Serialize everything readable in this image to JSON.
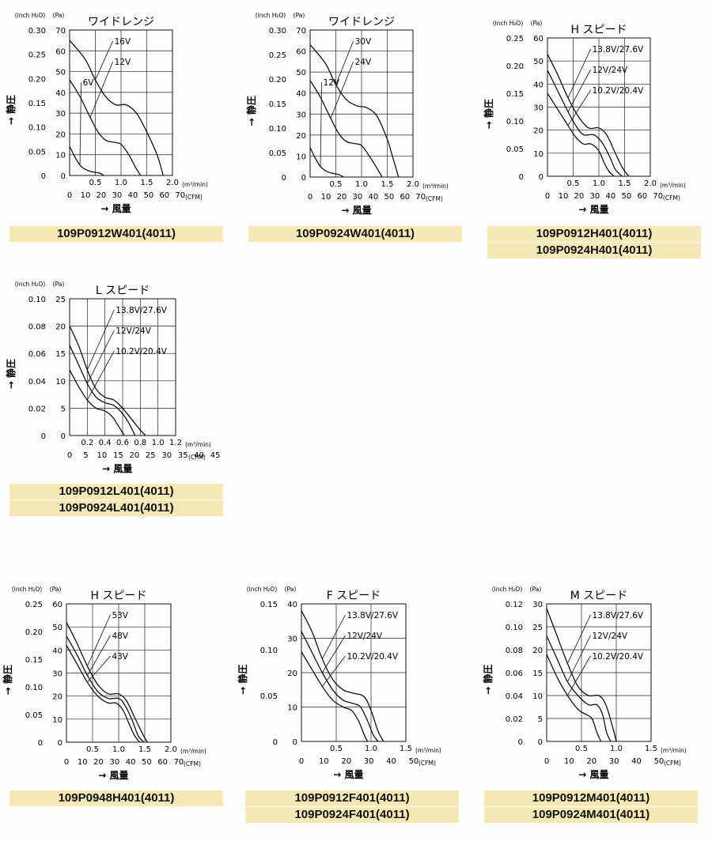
{
  "chart_data": [
    {
      "type": "line",
      "title": "ワイドレンジ",
      "ylabel": "静圧",
      "xlabel": "風量",
      "y_unit_left": "(inch H₂O)",
      "y_unit_right": "(Pa)",
      "x_unit_top": "(m³/min)",
      "x_unit_bottom": "(CFM)",
      "ylim_pa": [
        0,
        70
      ],
      "pa_ticks": [
        "0",
        "10",
        "20",
        "30",
        "40",
        "50",
        "60",
        "70"
      ],
      "inch_ticks": [
        "0",
        "0.05",
        "0.10",
        "0.15",
        "0.20",
        "0.25",
        "0.30"
      ],
      "m3_ticks": [
        "0.5",
        "1.0",
        "1.5",
        "2.0"
      ],
      "cfm_ticks": [
        "0",
        "10",
        "20",
        "30",
        "40",
        "50",
        "60",
        "70"
      ],
      "xlim_m3": [
        0,
        2.0
      ],
      "series": [
        {
          "name": "16V",
          "x": [
            0,
            0.3,
            0.5,
            0.7,
            0.9,
            1.1,
            1.3,
            1.5,
            1.7,
            1.82
          ],
          "y": [
            65,
            56,
            46,
            38,
            34,
            34,
            30,
            21,
            10,
            0
          ]
        },
        {
          "name": "12V",
          "x": [
            0,
            0.2,
            0.4,
            0.55,
            0.7,
            0.85,
            1.0,
            1.15,
            1.28,
            1.38
          ],
          "y": [
            46,
            38,
            28,
            21,
            17,
            16,
            15,
            10,
            4,
            0
          ]
        },
        {
          "name": "6V",
          "x": [
            0,
            0.1,
            0.2,
            0.3,
            0.4,
            0.5,
            0.6,
            0.66
          ],
          "y": [
            14,
            9,
            5,
            3,
            2,
            1.5,
            1,
            0
          ]
        }
      ],
      "model_labels": [
        "109P0912W401(4011)"
      ]
    },
    {
      "type": "line",
      "title": "ワイドレンジ",
      "ylabel": "静圧",
      "xlabel": "風量",
      "y_unit_left": "(inch H₂O)",
      "y_unit_right": "(Pa)",
      "x_unit_top": "(m³/min)",
      "x_unit_bottom": "(CFM)",
      "ylim_pa": [
        0,
        70
      ],
      "pa_ticks": [
        "0",
        "10",
        "20",
        "30",
        "40",
        "50",
        "60",
        "70"
      ],
      "inch_ticks": [
        "0",
        "0.05",
        "0.10",
        "0.15",
        "0.20",
        "0.25",
        "0.30"
      ],
      "m3_ticks": [
        "0.5",
        "1.0",
        "1.5",
        "2.0"
      ],
      "cfm_ticks": [
        "0",
        "10",
        "20",
        "30",
        "40",
        "50",
        "60",
        "70"
      ],
      "xlim_m3": [
        0,
        2.0
      ],
      "series": [
        {
          "name": "30V",
          "x": [
            0,
            0.3,
            0.5,
            0.7,
            0.9,
            1.1,
            1.3,
            1.5,
            1.6,
            1.72
          ],
          "y": [
            63,
            54,
            44,
            37,
            34,
            33,
            29,
            18,
            10,
            0
          ]
        },
        {
          "name": "24V",
          "x": [
            0,
            0.2,
            0.4,
            0.55,
            0.7,
            0.85,
            1.0,
            1.15,
            1.28,
            1.4
          ],
          "y": [
            46,
            38,
            28,
            21,
            17,
            16,
            15,
            10,
            5,
            0
          ]
        },
        {
          "name": "12V",
          "x": [
            0,
            0.1,
            0.2,
            0.3,
            0.4,
            0.5,
            0.58,
            0.65
          ],
          "y": [
            14,
            9,
            5,
            3,
            2,
            1.5,
            1,
            0
          ]
        }
      ],
      "model_labels": [
        "109P0924W401(4011)"
      ]
    },
    {
      "type": "line",
      "title": "H スピード",
      "ylabel": "静圧",
      "xlabel": "風量",
      "y_unit_left": "(inch H₂O)",
      "y_unit_right": "(Pa)",
      "x_unit_top": "(m³/min)",
      "x_unit_bottom": "(CFM)",
      "ylim_pa": [
        0,
        60
      ],
      "pa_ticks": [
        "0",
        "10",
        "20",
        "30",
        "40",
        "50",
        "60"
      ],
      "inch_ticks": [
        "0",
        "0.05",
        "0.10",
        "0.15",
        "0.20",
        "0.25"
      ],
      "m3_ticks": [
        "0.5",
        "1.0",
        "1.5",
        "2.0"
      ],
      "cfm_ticks": [
        "0",
        "10",
        "20",
        "30",
        "40",
        "50",
        "60",
        "70"
      ],
      "xlim_m3": [
        0,
        2.0
      ],
      "series": [
        {
          "name": "13.8V/27.6V",
          "x": [
            0,
            0.2,
            0.4,
            0.6,
            0.8,
            1.0,
            1.15,
            1.3,
            1.45,
            1.58
          ],
          "y": [
            53,
            44,
            34,
            26,
            21,
            21,
            18,
            11,
            4,
            0
          ]
        },
        {
          "name": "12V/24V",
          "x": [
            0,
            0.2,
            0.4,
            0.55,
            0.7,
            0.9,
            1.05,
            1.2,
            1.32,
            1.45
          ],
          "y": [
            46,
            37,
            28,
            22,
            18,
            18,
            15,
            9,
            3,
            0
          ]
        },
        {
          "name": "10.2V/20.4V",
          "x": [
            0,
            0.2,
            0.4,
            0.55,
            0.7,
            0.85,
            1.0,
            1.1,
            1.2,
            1.3
          ],
          "y": [
            36,
            29,
            22,
            17,
            14,
            14,
            11,
            6,
            2,
            0
          ]
        }
      ],
      "model_labels": [
        "109P0912H401(4011)",
        "109P0924H401(4011)"
      ]
    },
    {
      "type": "line",
      "title": "L スピード",
      "ylabel": "静圧",
      "xlabel": "風量",
      "y_unit_left": "(inch H₂O)",
      "y_unit_right": "(Pa)",
      "x_unit_top": "(m³/min)",
      "x_unit_bottom": "(CFM)",
      "ylim_pa": [
        0,
        25
      ],
      "pa_ticks": [
        "0",
        "5",
        "10",
        "15",
        "20",
        "25"
      ],
      "inch_ticks": [
        "0",
        "0.02",
        "0.04",
        "0.06",
        "0.08",
        "0.10"
      ],
      "m3_ticks": [
        "0.2",
        "0.4",
        "0.6",
        "0.8",
        "1.0",
        "1.2"
      ],
      "cfm_ticks": [
        "0",
        "5",
        "10",
        "15",
        "20",
        "25",
        "30",
        "35",
        "40",
        "45"
      ],
      "xlim_m3": [
        0,
        1.2
      ],
      "series": [
        {
          "name": "13.8V/27.6V",
          "x": [
            0,
            0.1,
            0.2,
            0.3,
            0.4,
            0.5,
            0.6,
            0.7,
            0.8,
            0.86
          ],
          "y": [
            20,
            16.5,
            12,
            8.5,
            7,
            6.5,
            5,
            3,
            1,
            0
          ]
        },
        {
          "name": "12V/24V",
          "x": [
            0,
            0.1,
            0.2,
            0.3,
            0.4,
            0.5,
            0.6,
            0.68,
            0.74
          ],
          "y": [
            16.5,
            13,
            9.5,
            7,
            6,
            5.5,
            4,
            2,
            0
          ]
        },
        {
          "name": "10.2V/20.4V",
          "x": [
            0,
            0.1,
            0.2,
            0.3,
            0.4,
            0.48,
            0.55,
            0.62
          ],
          "y": [
            12,
            9,
            6.5,
            5,
            4.5,
            3.5,
            1.8,
            0
          ]
        }
      ],
      "model_labels": [
        "109P0912L401(4011)",
        "109P0924L401(4011)"
      ]
    },
    {
      "type": "line",
      "title": "H スピード",
      "ylabel": "静圧",
      "xlabel": "風量",
      "y_unit_left": "(inch H₂O)",
      "y_unit_right": "(Pa)",
      "x_unit_top": "(m³/min)",
      "x_unit_bottom": "(CFM)",
      "ylim_pa": [
        0,
        60
      ],
      "pa_ticks": [
        "0",
        "10",
        "20",
        "30",
        "40",
        "50",
        "60"
      ],
      "inch_ticks": [
        "0",
        "0.05",
        "0.10",
        "0.15",
        "0.20",
        "0.25"
      ],
      "m3_ticks": [
        "0.5",
        "1.0",
        "1.5",
        "2.0"
      ],
      "cfm_ticks": [
        "0",
        "10",
        "20",
        "30",
        "40",
        "50",
        "60",
        "70"
      ],
      "xlim_m3": [
        0,
        2.0
      ],
      "series": [
        {
          "name": "53V",
          "x": [
            0,
            0.2,
            0.4,
            0.6,
            0.8,
            1.0,
            1.15,
            1.3,
            1.45,
            1.55
          ],
          "y": [
            52,
            43,
            33,
            25,
            21,
            21,
            18,
            11,
            4,
            0
          ]
        },
        {
          "name": "48V",
          "x": [
            0,
            0.2,
            0.4,
            0.6,
            0.8,
            1.0,
            1.12,
            1.25,
            1.37,
            1.48
          ],
          "y": [
            46,
            38,
            29,
            22,
            19,
            19,
            16,
            10,
            3,
            0
          ]
        },
        {
          "name": "43V",
          "x": [
            0,
            0.2,
            0.4,
            0.6,
            0.8,
            0.95,
            1.08,
            1.2,
            1.3,
            1.4
          ],
          "y": [
            42,
            34,
            26,
            20,
            17,
            17,
            14,
            8,
            3,
            0
          ]
        }
      ],
      "model_labels": [
        "109P0948H401(4011)"
      ]
    },
    {
      "type": "line",
      "title": "F スピード",
      "ylabel": "静圧",
      "xlabel": "風量",
      "y_unit_left": "(inch H₂O)",
      "y_unit_right": "(Pa)",
      "x_unit_top": "(m³/min)",
      "x_unit_bottom": "(CFM)",
      "ylim_pa": [
        0,
        40
      ],
      "pa_ticks": [
        "0",
        "10",
        "20",
        "30",
        "40"
      ],
      "inch_ticks": [
        "0",
        "0.05",
        "0.10",
        "0.15"
      ],
      "m3_ticks": [
        "0.5",
        "1.0",
        "1.5"
      ],
      "cfm_ticks": [
        "0",
        "10",
        "20",
        "30",
        "40",
        "50"
      ],
      "xlim_m3": [
        0,
        1.5
      ],
      "series": [
        {
          "name": "13.8V/27.6V",
          "x": [
            0,
            0.15,
            0.3,
            0.45,
            0.6,
            0.75,
            0.9,
            1.0,
            1.1,
            1.18
          ],
          "y": [
            38,
            32,
            24,
            18,
            15,
            14,
            13,
            9,
            3,
            0
          ]
        },
        {
          "name": "12V/24V",
          "x": [
            0,
            0.15,
            0.3,
            0.45,
            0.6,
            0.75,
            0.85,
            0.95,
            1.03,
            1.1
          ],
          "y": [
            32,
            26,
            20,
            15,
            12,
            11,
            10,
            6,
            2,
            0
          ]
        },
        {
          "name": "10.2V/20.4V",
          "x": [
            0,
            0.15,
            0.3,
            0.45,
            0.6,
            0.72,
            0.82,
            0.9,
            0.95
          ],
          "y": [
            26,
            21,
            16,
            12,
            10,
            9,
            6,
            2,
            0
          ]
        }
      ],
      "model_labels": [
        "109P0912F401(4011)",
        "109P0924F401(4011)"
      ]
    },
    {
      "type": "line",
      "title": "M スピード",
      "ylabel": "静圧",
      "xlabel": "風量",
      "y_unit_left": "(inch H₂O)",
      "y_unit_right": "(Pa)",
      "x_unit_top": "(m³/min)",
      "x_unit_bottom": "(CFM)",
      "ylim_pa": [
        0,
        30
      ],
      "pa_ticks": [
        "0",
        "5",
        "10",
        "15",
        "20",
        "25",
        "30"
      ],
      "inch_ticks": [
        "0",
        "0.02",
        "0.04",
        "0.06",
        "0.08",
        "0.10",
        "0.12"
      ],
      "m3_ticks": [
        "0.5",
        "1.0",
        "1.5"
      ],
      "cfm_ticks": [
        "0",
        "10",
        "20",
        "30",
        "40",
        "50"
      ],
      "xlim_m3": [
        0,
        1.5
      ],
      "series": [
        {
          "name": "13.8V/27.6V",
          "x": [
            0,
            0.15,
            0.3,
            0.45,
            0.6,
            0.75,
            0.85,
            0.95,
            1.0
          ],
          "y": [
            29,
            23,
            17,
            12,
            10,
            10,
            8,
            3,
            0
          ]
        },
        {
          "name": "12V/24V",
          "x": [
            0,
            0.15,
            0.3,
            0.45,
            0.6,
            0.72,
            0.8,
            0.86,
            0.92
          ],
          "y": [
            23,
            18,
            13,
            10,
            8,
            8,
            6,
            2,
            0
          ]
        },
        {
          "name": "10.2V/20.4V",
          "x": [
            0,
            0.15,
            0.3,
            0.45,
            0.55,
            0.65,
            0.72,
            0.78
          ],
          "y": [
            19,
            14,
            10,
            7,
            6,
            5,
            2,
            0
          ]
        }
      ],
      "model_labels": [
        "109P0912M401(4011)",
        "109P0924M401(4011)"
      ]
    }
  ]
}
